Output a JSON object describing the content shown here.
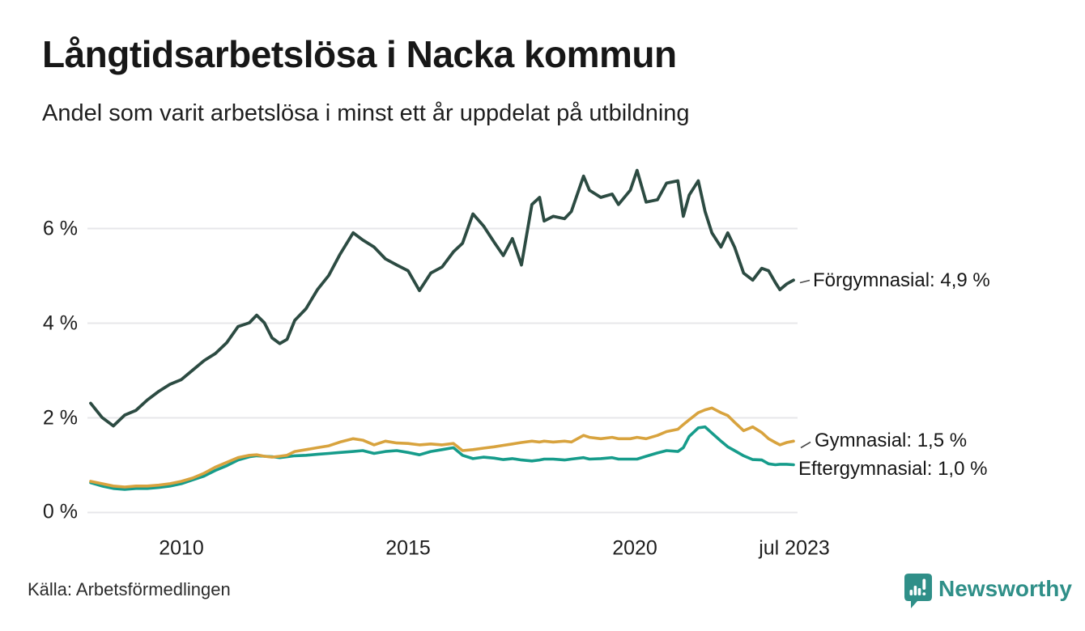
{
  "title": "Långtidsarbetslösa i Nacka kommun",
  "subtitle": "Andel som varit arbetslösa i minst ett år uppdelat på utbildning",
  "source": "Källa: Arbetsförmedlingen",
  "brand": {
    "name": "Newsworthy",
    "color": "#2f8f88"
  },
  "series_labels": {
    "forgymnasial": "Förgymnasial: 4,9 %",
    "gymnasial": "Gymnasial: 1,5 %",
    "eftergymnasial": "Eftergymnasial: 1,0 %"
  },
  "chart_data": {
    "type": "line",
    "title": "Långtidsarbetslösa i Nacka kommun",
    "subtitle": "Andel som varit arbetslösa i minst ett år uppdelat på utbildning",
    "x_unit": "decimal_year",
    "xlim": [
      2008.0,
      2023.58
    ],
    "ylim": [
      0,
      7.6
    ],
    "grid": "horizontal",
    "legend_position": "end-of-line-labels",
    "y_ticks": [
      {
        "value": 6,
        "label": "6 %"
      },
      {
        "value": 4,
        "label": "4 %"
      },
      {
        "value": 2,
        "label": "2 %"
      },
      {
        "value": 0,
        "label": "0 %"
      }
    ],
    "x_ticks": [
      {
        "value": 2010.0,
        "label": "2010"
      },
      {
        "value": 2015.0,
        "label": "2015"
      },
      {
        "value": 2020.0,
        "label": "2020"
      },
      {
        "value": 2023.5,
        "label": "jul 2023"
      }
    ],
    "x": [
      2008.0,
      2008.25,
      2008.5,
      2008.75,
      2009.0,
      2009.25,
      2009.5,
      2009.75,
      2010.0,
      2010.25,
      2010.5,
      2010.75,
      2011.0,
      2011.25,
      2011.5,
      2011.66,
      2011.83,
      2012.0,
      2012.17,
      2012.33,
      2012.5,
      2012.75,
      2013.0,
      2013.25,
      2013.5,
      2013.79,
      2014.0,
      2014.25,
      2014.5,
      2014.75,
      2015.0,
      2015.25,
      2015.5,
      2015.75,
      2016.0,
      2016.2,
      2016.43,
      2016.66,
      2016.9,
      2017.1,
      2017.3,
      2017.5,
      2017.73,
      2017.9,
      2018.0,
      2018.2,
      2018.45,
      2018.6,
      2018.87,
      2019.0,
      2019.25,
      2019.5,
      2019.64,
      2019.9,
      2020.05,
      2020.25,
      2020.5,
      2020.7,
      2020.95,
      2021.07,
      2021.2,
      2021.4,
      2021.55,
      2021.7,
      2021.9,
      2022.05,
      2022.2,
      2022.4,
      2022.6,
      2022.8,
      2022.95,
      2023.1,
      2023.2,
      2023.35,
      2023.5
    ],
    "series": [
      {
        "name": "Förgymnasial",
        "color": "#2c4b42",
        "end_value": 4.9,
        "end_label": "Förgymnasial: 4,9 %",
        "values": [
          2.3,
          2.0,
          1.82,
          2.05,
          2.15,
          2.37,
          2.55,
          2.7,
          2.8,
          3.0,
          3.2,
          3.35,
          3.58,
          3.92,
          4.0,
          4.16,
          4.0,
          3.68,
          3.56,
          3.65,
          4.05,
          4.3,
          4.7,
          5.0,
          5.45,
          5.9,
          5.75,
          5.6,
          5.35,
          5.22,
          5.1,
          4.68,
          5.05,
          5.18,
          5.5,
          5.68,
          6.3,
          6.05,
          5.7,
          5.42,
          5.78,
          5.22,
          6.5,
          6.65,
          6.15,
          6.25,
          6.2,
          6.35,
          7.1,
          6.8,
          6.65,
          6.72,
          6.5,
          6.8,
          7.22,
          6.55,
          6.6,
          6.95,
          7.0,
          6.25,
          6.7,
          7.0,
          6.35,
          5.9,
          5.6,
          5.9,
          5.6,
          5.05,
          4.9,
          5.15,
          5.1,
          4.85,
          4.7,
          4.82,
          4.9
        ]
      },
      {
        "name": "Gymnasial",
        "color": "#d8a33e",
        "end_value": 1.5,
        "end_label": "Gymnasial: 1,5 %",
        "values": [
          0.65,
          0.6,
          0.55,
          0.53,
          0.55,
          0.55,
          0.57,
          0.6,
          0.65,
          0.72,
          0.82,
          0.95,
          1.05,
          1.15,
          1.2,
          1.21,
          1.18,
          1.16,
          1.18,
          1.2,
          1.28,
          1.32,
          1.36,
          1.4,
          1.48,
          1.55,
          1.52,
          1.42,
          1.5,
          1.46,
          1.45,
          1.42,
          1.44,
          1.42,
          1.45,
          1.3,
          1.32,
          1.35,
          1.38,
          1.41,
          1.44,
          1.47,
          1.5,
          1.48,
          1.5,
          1.48,
          1.5,
          1.48,
          1.62,
          1.58,
          1.55,
          1.58,
          1.55,
          1.55,
          1.58,
          1.55,
          1.62,
          1.7,
          1.75,
          1.85,
          1.95,
          2.1,
          2.16,
          2.2,
          2.1,
          2.04,
          1.9,
          1.72,
          1.8,
          1.68,
          1.55,
          1.47,
          1.42,
          1.47,
          1.5
        ]
      },
      {
        "name": "Eftergymnasial",
        "color": "#169c8b",
        "end_value": 1.0,
        "end_label": "Eftergymnasial: 1,0 %",
        "values": [
          0.62,
          0.55,
          0.5,
          0.48,
          0.5,
          0.5,
          0.52,
          0.55,
          0.6,
          0.68,
          0.76,
          0.88,
          0.98,
          1.1,
          1.17,
          1.19,
          1.18,
          1.17,
          1.15,
          1.17,
          1.19,
          1.2,
          1.22,
          1.24,
          1.26,
          1.28,
          1.3,
          1.24,
          1.28,
          1.3,
          1.26,
          1.21,
          1.28,
          1.32,
          1.36,
          1.2,
          1.13,
          1.16,
          1.14,
          1.11,
          1.13,
          1.1,
          1.08,
          1.1,
          1.12,
          1.12,
          1.1,
          1.12,
          1.15,
          1.12,
          1.13,
          1.15,
          1.12,
          1.12,
          1.12,
          1.18,
          1.25,
          1.3,
          1.28,
          1.36,
          1.6,
          1.78,
          1.8,
          1.67,
          1.5,
          1.38,
          1.3,
          1.19,
          1.11,
          1.1,
          1.02,
          1.0,
          1.01,
          1.01,
          1.0
        ]
      }
    ]
  }
}
